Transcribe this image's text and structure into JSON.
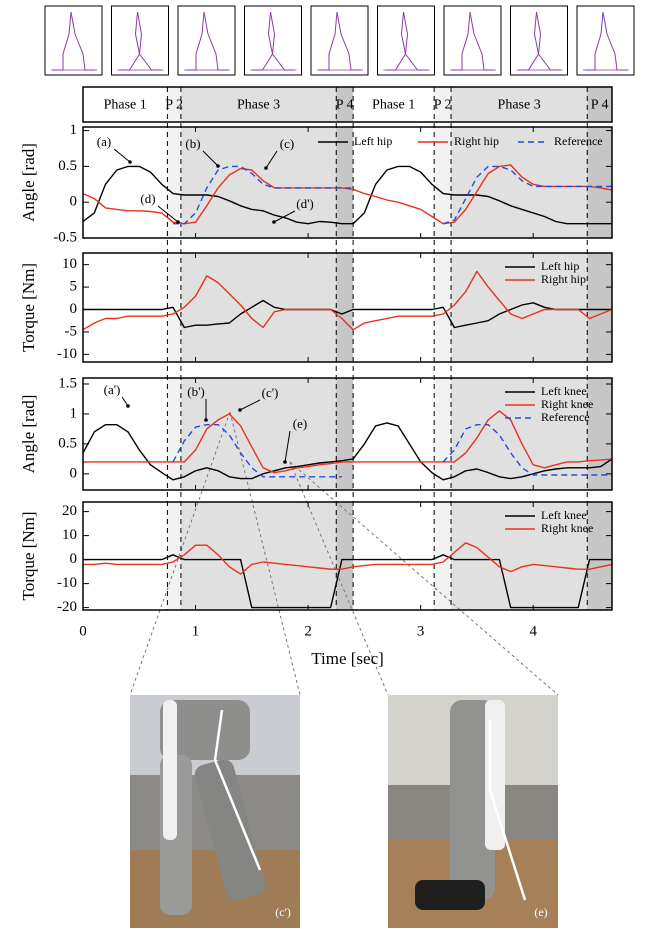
{
  "phases": [
    {
      "label": "Phase 1",
      "start": 0,
      "end": 0.75,
      "color": "#ffffff"
    },
    {
      "label": "P 2",
      "start": 0.75,
      "end": 0.87,
      "color": "#f2f2f2"
    },
    {
      "label": "Phase 3",
      "start": 0.87,
      "end": 2.25,
      "color": "#e0e0e0"
    },
    {
      "label": "P 4",
      "start": 2.25,
      "end": 2.4,
      "color": "#c6c6c6"
    },
    {
      "label": "Phase 1",
      "start": 2.4,
      "end": 3.12,
      "color": "#ffffff"
    },
    {
      "label": "P 2",
      "start": 3.12,
      "end": 3.27,
      "color": "#f2f2f2"
    },
    {
      "label": "Phase 3",
      "start": 3.27,
      "end": 4.48,
      "color": "#e0e0e0"
    },
    {
      "label": "P 4",
      "start": 4.48,
      "end": 4.7,
      "color": "#c6c6c6"
    }
  ],
  "photos": [
    {
      "label": "(c')"
    },
    {
      "label": "(e)"
    }
  ],
  "chart_data": [
    {
      "type": "line",
      "ylabel": "Angle [rad]",
      "xlim": [
        0,
        4.7
      ],
      "xticks": [
        0,
        1,
        2,
        3,
        4
      ],
      "ylim": [
        -0.5,
        1.05
      ],
      "yticks": [
        -0.5,
        0,
        0.5,
        1
      ],
      "legend": "upper right",
      "annotations": [
        "(a)",
        "(b)",
        "(c)",
        "(d)",
        "(d')"
      ],
      "x": [
        0,
        0.1,
        0.2,
        0.3,
        0.4,
        0.5,
        0.6,
        0.7,
        0.8,
        0.9,
        1,
        1.1,
        1.2,
        1.3,
        1.4,
        1.5,
        1.6,
        1.7,
        1.8,
        1.9,
        2,
        2.1,
        2.2,
        2.3,
        2.4,
        2.5,
        2.6,
        2.7,
        2.8,
        2.9,
        3,
        3.1,
        3.2,
        3.3,
        3.4,
        3.5,
        3.6,
        3.7,
        3.8,
        3.9,
        4,
        4.1,
        4.2,
        4.3,
        4.4,
        4.5,
        4.6,
        4.7
      ],
      "series": [
        {
          "name": "Left hip",
          "color": "#000000",
          "dash": false,
          "values": [
            -0.27,
            -0.15,
            0.25,
            0.45,
            0.5,
            0.5,
            0.42,
            0.25,
            0.12,
            0.1,
            0.1,
            0.1,
            0.08,
            0.02,
            -0.05,
            -0.1,
            -0.12,
            -0.18,
            -0.22,
            -0.28,
            -0.3,
            -0.27,
            -0.28,
            -0.3,
            -0.3,
            -0.15,
            0.25,
            0.45,
            0.5,
            0.5,
            0.42,
            0.25,
            0.12,
            0.1,
            0.1,
            0.1,
            0.08,
            0.02,
            -0.05,
            -0.1,
            -0.15,
            -0.2,
            -0.27,
            -0.3,
            -0.3,
            -0.3,
            -0.3,
            -0.3
          ]
        },
        {
          "name": "Right hip",
          "color": "#e8321e",
          "dash": false,
          "values": [
            0.12,
            0.05,
            -0.08,
            -0.1,
            -0.12,
            -0.12,
            -0.13,
            -0.15,
            -0.28,
            -0.3,
            -0.28,
            -0.05,
            0.2,
            0.38,
            0.47,
            0.45,
            0.3,
            0.2,
            0.2,
            0.2,
            0.2,
            0.2,
            0.2,
            0.2,
            0.18,
            0.12,
            0.08,
            0.03,
            0,
            -0.05,
            -0.1,
            -0.2,
            -0.3,
            -0.28,
            -0.1,
            0.15,
            0.4,
            0.5,
            0.52,
            0.35,
            0.25,
            0.22,
            0.22,
            0.22,
            0.22,
            0.22,
            0.2,
            0.17
          ]
        },
        {
          "name": "Reference",
          "color": "#1f4fd8",
          "dash": true,
          "values": [
            null,
            null,
            null,
            null,
            null,
            null,
            null,
            null,
            -0.3,
            -0.3,
            -0.15,
            0.2,
            0.45,
            0.5,
            0.5,
            0.4,
            0.25,
            0.2,
            0.2,
            0.2,
            0.2,
            0.2,
            0.2,
            0.2,
            0.2,
            null,
            null,
            null,
            null,
            null,
            null,
            null,
            -0.3,
            -0.25,
            0.05,
            0.35,
            0.5,
            0.5,
            0.45,
            0.3,
            0.22,
            0.22,
            0.22,
            0.22,
            0.22,
            0.22,
            0.22,
            0.22
          ]
        }
      ]
    },
    {
      "type": "line",
      "ylabel": "Torque [Nm]",
      "xlim": [
        0,
        4.7
      ],
      "xticks": [
        0,
        1,
        2,
        3,
        4
      ],
      "ylim": [
        -11.7,
        12.6
      ],
      "yticks": [
        -10,
        -5,
        0,
        5,
        10
      ],
      "legend": "upper right",
      "x": [
        0,
        0.1,
        0.2,
        0.3,
        0.4,
        0.5,
        0.6,
        0.7,
        0.8,
        0.9,
        1,
        1.1,
        1.2,
        1.3,
        1.4,
        1.5,
        1.6,
        1.7,
        1.8,
        1.9,
        2,
        2.1,
        2.2,
        2.3,
        2.4,
        2.5,
        2.6,
        2.7,
        2.8,
        2.9,
        3,
        3.1,
        3.2,
        3.3,
        3.4,
        3.5,
        3.6,
        3.7,
        3.8,
        3.9,
        4,
        4.1,
        4.2,
        4.3,
        4.4,
        4.5,
        4.6,
        4.7
      ],
      "series": [
        {
          "name": "Left hip",
          "color": "#000000",
          "dash": false,
          "values": [
            0,
            0,
            0,
            0,
            0,
            0,
            0,
            0,
            0.5,
            -4,
            -3.5,
            -3.5,
            -3.2,
            -3,
            -1,
            0.5,
            2,
            0.5,
            0,
            0,
            0,
            0,
            0,
            -1,
            0,
            0,
            0,
            0,
            0,
            0,
            0,
            0,
            0.5,
            -4,
            -3.5,
            -3,
            -2.5,
            -1,
            0,
            1,
            1.5,
            0.5,
            0,
            0,
            0,
            0,
            0,
            0
          ]
        },
        {
          "name": "Right hip",
          "color": "#e8321e",
          "dash": false,
          "values": [
            -4.5,
            -3,
            -2,
            -2,
            -1.5,
            -1.5,
            -1.5,
            -1.5,
            -1,
            0.5,
            3,
            7.5,
            6,
            3.5,
            1,
            -2,
            -4,
            -0.5,
            0,
            0,
            0,
            0,
            0,
            -2,
            -4.5,
            -3,
            -2.5,
            -2,
            -1.5,
            -1.5,
            -1.5,
            -1.5,
            -1,
            1,
            4,
            8.5,
            5,
            2,
            -1,
            -2,
            -1,
            0,
            0,
            0,
            0,
            -2,
            -1,
            0
          ]
        }
      ]
    },
    {
      "type": "line",
      "ylabel": "Angle [rad]",
      "xlim": [
        0,
        4.7
      ],
      "xticks": [
        0,
        1,
        2,
        3,
        4
      ],
      "ylim": [
        -0.27,
        1.6
      ],
      "yticks": [
        0,
        0.5,
        1,
        1.5
      ],
      "legend": "upper right",
      "annotations": [
        "(a')",
        "(b')",
        "(c')",
        "(e)"
      ],
      "x": [
        0,
        0.1,
        0.2,
        0.3,
        0.4,
        0.5,
        0.6,
        0.7,
        0.8,
        0.9,
        1,
        1.1,
        1.2,
        1.3,
        1.4,
        1.5,
        1.6,
        1.7,
        1.8,
        1.9,
        2,
        2.1,
        2.2,
        2.3,
        2.4,
        2.5,
        2.6,
        2.7,
        2.8,
        2.9,
        3,
        3.1,
        3.2,
        3.3,
        3.4,
        3.5,
        3.6,
        3.7,
        3.8,
        3.9,
        4,
        4.1,
        4.2,
        4.3,
        4.4,
        4.5,
        4.6,
        4.7
      ],
      "series": [
        {
          "name": "Left knee",
          "color": "#000000",
          "dash": false,
          "values": [
            0.35,
            0.7,
            0.82,
            0.82,
            0.7,
            0.4,
            0.15,
            0.02,
            -0.1,
            -0.05,
            0.05,
            0.1,
            0.05,
            -0.05,
            -0.08,
            -0.08,
            0,
            0.05,
            0.1,
            0.12,
            0.15,
            0.18,
            0.2,
            0.22,
            0.25,
            0.5,
            0.8,
            0.85,
            0.8,
            0.5,
            0.2,
            0.02,
            -0.1,
            -0.05,
            0.05,
            0.08,
            0.02,
            -0.05,
            -0.08,
            -0.05,
            0,
            0.05,
            0.08,
            0.1,
            0.1,
            0.1,
            0.12,
            0.25
          ]
        },
        {
          "name": "Right knee",
          "color": "#e8321e",
          "dash": false,
          "values": [
            0.2,
            0.2,
            0.2,
            0.2,
            0.2,
            0.2,
            0.2,
            0.2,
            0.2,
            0.2,
            0.4,
            0.75,
            0.9,
            1,
            0.8,
            0.45,
            0.1,
            0.02,
            0.05,
            0.1,
            0.12,
            0.15,
            0.17,
            0.2,
            0.2,
            0.2,
            0.2,
            0.2,
            0.2,
            0.2,
            0.2,
            0.2,
            0.2,
            0.2,
            0.35,
            0.6,
            0.9,
            1.05,
            0.9,
            0.5,
            0.15,
            0.1,
            0.15,
            0.2,
            0.2,
            0.22,
            0.23,
            0.25
          ]
        },
        {
          "name": "Reference",
          "color": "#1f4fd8",
          "dash": true,
          "values": [
            null,
            null,
            null,
            null,
            null,
            null,
            null,
            null,
            0.2,
            0.55,
            0.78,
            0.82,
            0.82,
            0.65,
            0.35,
            0.1,
            -0.05,
            -0.05,
            -0.05,
            -0.05,
            -0.05,
            -0.05,
            -0.05,
            -0.05,
            null,
            null,
            null,
            null,
            null,
            null,
            null,
            null,
            0.2,
            0.4,
            0.75,
            0.82,
            0.82,
            0.65,
            0.35,
            0.1,
            -0.02,
            -0.02,
            -0.02,
            -0.02,
            -0.02,
            -0.02,
            -0.02,
            -0.02
          ]
        }
      ]
    },
    {
      "type": "line",
      "ylabel": "Torque [Nm]",
      "xlabel": "Time [sec]",
      "xlim": [
        0,
        4.7
      ],
      "xticks": [
        0,
        1,
        2,
        3,
        4
      ],
      "ylim": [
        -21,
        24
      ],
      "yticks": [
        -20,
        -10,
        0,
        10,
        20
      ],
      "legend": "upper right",
      "x": [
        0,
        0.1,
        0.2,
        0.3,
        0.4,
        0.5,
        0.6,
        0.7,
        0.8,
        0.9,
        1,
        1.1,
        1.2,
        1.3,
        1.4,
        1.5,
        1.6,
        1.7,
        1.8,
        1.9,
        2,
        2.1,
        2.2,
        2.3,
        2.4,
        2.5,
        2.6,
        2.7,
        2.8,
        2.9,
        3,
        3.1,
        3.2,
        3.3,
        3.4,
        3.5,
        3.6,
        3.7,
        3.8,
        3.9,
        4,
        4.1,
        4.2,
        4.3,
        4.4,
        4.5,
        4.6,
        4.7
      ],
      "series": [
        {
          "name": "Left knee",
          "color": "#000000",
          "dash": false,
          "values": [
            0,
            0,
            0,
            0,
            0,
            0,
            0,
            0,
            2,
            0,
            0,
            0,
            0,
            0,
            0,
            -20,
            -20,
            -20,
            -20,
            -20,
            -20,
            -20,
            -20,
            0,
            0,
            0,
            0,
            0,
            0,
            0,
            0,
            0,
            2,
            0,
            0,
            0,
            0,
            0,
            -20,
            -20,
            -20,
            -20,
            -20,
            -20,
            -20,
            0,
            0,
            0
          ]
        },
        {
          "name": "Right knee",
          "color": "#e8321e",
          "dash": false,
          "values": [
            -2,
            -2,
            -1.5,
            -2,
            -2,
            -2,
            -2,
            -2,
            -1,
            2,
            6,
            6,
            2,
            -3,
            -6,
            -2,
            -1,
            -1.5,
            -2,
            -2.5,
            -3,
            -3.5,
            -4,
            -4,
            -3,
            -2.5,
            -2,
            -2,
            -2,
            -2,
            -2,
            -2,
            -1,
            3,
            7,
            5,
            1,
            -3,
            -5,
            -3,
            -2,
            -2.5,
            -3,
            -3.5,
            -4,
            -4,
            -3,
            -2
          ]
        }
      ]
    }
  ]
}
